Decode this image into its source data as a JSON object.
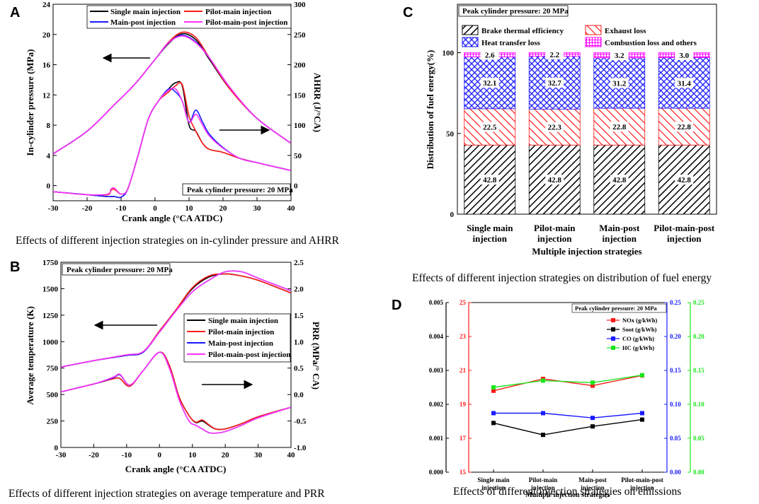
{
  "chart_data": [
    {
      "id": "A",
      "type": "line",
      "panel_label": "A",
      "caption": "Effects of different injection strategies on in-cylinder pressure and AHRR",
      "xlabel": "Crank angle (°CA ATDC)",
      "ylabel_left": "In-cylinder pressure (MPa)",
      "ylabel_right": "AHRR (J/°CA)",
      "xlim": [
        -30,
        40
      ],
      "xticks": [
        -30,
        -20,
        -10,
        0,
        10,
        20,
        30,
        40
      ],
      "ylim_left": [
        -2,
        24
      ],
      "yticks_left": [
        0,
        4,
        8,
        12,
        16,
        20,
        24
      ],
      "ylim_right": [
        -25,
        300
      ],
      "yticks_right": [
        0,
        50,
        100,
        150,
        200,
        250,
        300
      ],
      "annotation": "Peak cylinder pressure: 20 MPa",
      "legend": [
        "Single main injection",
        "Pilot-main injection",
        "Main-post injection",
        "Pilot-main-post injection"
      ],
      "colors": [
        "#000000",
        "#ff1a1a",
        "#1a1aff",
        "#ff33ff"
      ],
      "pressure_x": [
        -30,
        -20,
        -12,
        -6,
        0,
        4,
        8,
        12,
        16,
        22,
        30,
        40
      ],
      "pressure": [
        {
          "name": "Single main injection",
          "values": [
            4.2,
            7.2,
            10.7,
            13.4,
            16.7,
            18.8,
            20.1,
            19.3,
            16.7,
            12.8,
            8.9,
            5.6
          ]
        },
        {
          "name": "Pilot-main injection",
          "values": [
            4.2,
            7.2,
            10.7,
            13.4,
            16.7,
            19.0,
            20.3,
            19.6,
            16.9,
            12.8,
            8.9,
            5.6
          ]
        },
        {
          "name": "Main-post injection",
          "values": [
            4.2,
            7.2,
            10.7,
            13.4,
            16.7,
            18.9,
            19.9,
            19.0,
            16.9,
            13.0,
            8.9,
            5.6
          ]
        },
        {
          "name": "Pilot-main-post injection",
          "values": [
            4.2,
            7.2,
            10.7,
            13.4,
            16.7,
            18.9,
            19.8,
            18.9,
            16.9,
            13.0,
            8.9,
            5.6
          ]
        }
      ],
      "ahrr_x": [
        -30,
        -20,
        -14,
        -13,
        -12,
        -10,
        -8,
        -5,
        -2,
        1,
        4,
        6,
        8,
        10,
        12,
        14,
        16,
        20,
        25,
        30,
        40
      ],
      "ahrr": [
        {
          "name": "Single main injection",
          "values": [
            -10,
            -15,
            -18,
            -18,
            -18,
            -19,
            -5,
            50,
            110,
            140,
            160,
            170,
            165,
            100,
            90,
            70,
            60,
            55,
            45,
            38,
            25
          ]
        },
        {
          "name": "Pilot-main injection",
          "values": [
            -10,
            -15,
            -15,
            -8,
            -6,
            -14,
            -5,
            50,
            110,
            140,
            155,
            165,
            167,
            115,
            90,
            70,
            60,
            55,
            45,
            38,
            25
          ]
        },
        {
          "name": "Main-post injection",
          "values": [
            -10,
            -15,
            -18,
            -18,
            -18,
            -19,
            -5,
            50,
            110,
            140,
            160,
            155,
            140,
            105,
            125,
            105,
            85,
            63,
            45,
            38,
            25
          ]
        },
        {
          "name": "Pilot-main-post injection",
          "values": [
            -10,
            -15,
            -14,
            -6,
            -4,
            -14,
            -5,
            50,
            110,
            140,
            158,
            160,
            140,
            105,
            118,
            100,
            82,
            62,
            45,
            38,
            25
          ]
        }
      ]
    },
    {
      "id": "B",
      "type": "line",
      "panel_label": "B",
      "caption": "Effects of different injection strategies on average temperature and PRR",
      "xlabel": "Crank angle (°CA ATDC)",
      "ylabel_left": "Average temperature (K)",
      "ylabel_right": "PRR (MPa/° CA)",
      "xlim": [
        -30,
        40
      ],
      "xticks": [
        -30,
        -20,
        -10,
        0,
        10,
        20,
        30,
        40
      ],
      "ylim_left": [
        0,
        1750
      ],
      "yticks_left": [
        0,
        250,
        500,
        750,
        1000,
        1250,
        1500,
        1750
      ],
      "ylim_right": [
        -1.0,
        2.5
      ],
      "yticks_right": [
        -1.0,
        -0.5,
        0.0,
        0.5,
        1.0,
        1.5,
        2.0,
        2.5
      ],
      "annotation": "Peak cylinder pressure: 20 MPa",
      "legend": [
        "Single main injection",
        "Pilot-main injection",
        "Main-post injection",
        "Pilot-main-post injection"
      ],
      "colors": [
        "#000000",
        "#ff1a1a",
        "#1a1aff",
        "#ff33ff"
      ],
      "temp_x": [
        -30,
        -20,
        -10,
        -5,
        0,
        5,
        10,
        15,
        20,
        25,
        30,
        40
      ],
      "temperature": [
        {
          "name": "Single main injection",
          "values": [
            760,
            820,
            870,
            900,
            1100,
            1300,
            1500,
            1610,
            1640,
            1620,
            1580,
            1460
          ]
        },
        {
          "name": "Pilot-main injection",
          "values": [
            760,
            820,
            875,
            905,
            1100,
            1300,
            1510,
            1620,
            1640,
            1620,
            1580,
            1460
          ]
        },
        {
          "name": "Main-post injection",
          "values": [
            760,
            820,
            870,
            900,
            1090,
            1290,
            1470,
            1580,
            1660,
            1660,
            1600,
            1480
          ]
        },
        {
          "name": "Pilot-main-post injection",
          "values": [
            760,
            820,
            875,
            905,
            1090,
            1290,
            1470,
            1580,
            1660,
            1660,
            1600,
            1480
          ]
        }
      ],
      "prr_x": [
        -30,
        -20,
        -14,
        -12,
        -9,
        -5,
        0,
        3,
        6,
        9,
        11,
        13,
        15,
        17,
        20,
        25,
        30,
        40
      ],
      "prr": [
        {
          "name": "Single main injection",
          "values": [
            0.05,
            0.2,
            0.3,
            0.3,
            0.16,
            0.45,
            0.8,
            0.55,
            -0.05,
            -0.4,
            -0.53,
            -0.5,
            -0.58,
            -0.65,
            -0.65,
            -0.55,
            -0.42,
            -0.24
          ]
        },
        {
          "name": "Pilot-main injection",
          "values": [
            0.05,
            0.2,
            0.3,
            0.3,
            0.16,
            0.45,
            0.8,
            0.55,
            -0.05,
            -0.4,
            -0.52,
            -0.48,
            -0.57,
            -0.65,
            -0.65,
            -0.55,
            -0.42,
            -0.24
          ]
        },
        {
          "name": "Main-post injection",
          "values": [
            0.05,
            0.2,
            0.32,
            0.37,
            0.18,
            0.45,
            0.8,
            0.5,
            -0.1,
            -0.5,
            -0.58,
            -0.65,
            -0.72,
            -0.73,
            -0.7,
            -0.58,
            -0.44,
            -0.24
          ]
        },
        {
          "name": "Pilot-main-post injection",
          "values": [
            0.05,
            0.2,
            0.33,
            0.38,
            0.18,
            0.45,
            0.8,
            0.5,
            -0.1,
            -0.5,
            -0.58,
            -0.65,
            -0.72,
            -0.73,
            -0.7,
            -0.58,
            -0.44,
            -0.24
          ]
        }
      ]
    },
    {
      "id": "C",
      "type": "bar",
      "stacked": true,
      "panel_label": "C",
      "caption": "Effects of different injection strategies on distribution of fuel energy",
      "xlabel": "Multiple injection strategies",
      "ylabel": "Distribution of  fuel energy(%)",
      "ylim": [
        0,
        130
      ],
      "yticks": [
        0,
        50,
        100
      ],
      "annotation": "Peak cylinder pressure: 20 MPa",
      "categories": [
        [
          "Single main",
          "injection"
        ],
        [
          "Pilot-main",
          "injection"
        ],
        [
          "Main-post",
          "injection"
        ],
        [
          "Pilot-main-post",
          "injection"
        ]
      ],
      "series": [
        {
          "name": "Brake thermal efficiency",
          "color": "#000000",
          "values": [
            42.8,
            42.8,
            42.8,
            42.8
          ],
          "labels": [
            "42.8",
            "42.8",
            "42.8",
            "42.8"
          ]
        },
        {
          "name": "Exhaust loss",
          "color": "#ff1a1a",
          "values": [
            22.5,
            22.3,
            22.8,
            22.8
          ],
          "labels": [
            "22.5",
            "22.3",
            "22.8",
            "22.8"
          ]
        },
        {
          "name": "Heat transfer loss",
          "color": "#1a1aff",
          "values": [
            32.1,
            32.7,
            31.2,
            31.4
          ],
          "labels": [
            "32.1",
            "32.7",
            "31.2",
            "31.4"
          ]
        },
        {
          "name": "Combustion loss and others",
          "color": "#ff00ff",
          "values": [
            2.6,
            2.2,
            3.2,
            3.0
          ],
          "labels": [
            "2.6",
            "2.2",
            "3.2",
            "3.0"
          ]
        }
      ]
    },
    {
      "id": "D",
      "type": "line",
      "panel_label": "D",
      "caption": "Effects of different injection strategies on emissions",
      "xlabel": "Multiple injection strategies",
      "annotation": "Peak cylinder pressure: 20 MPa",
      "categories": [
        [
          "Single main",
          "injection"
        ],
        [
          "Pilot-main",
          "injection"
        ],
        [
          "Main-post",
          "injection"
        ],
        [
          "Pilot-main-post",
          "injection"
        ]
      ],
      "axes": {
        "left1": {
          "color": "#000000",
          "ylim": [
            0,
            0.005
          ],
          "ticks": [
            "0.000",
            "0.001",
            "0.002",
            "0.003",
            "0.004",
            "0.005"
          ]
        },
        "left2": {
          "color": "#ff1a1a",
          "ylim": [
            15,
            25
          ],
          "ticks": [
            "15",
            "17",
            "19",
            "21",
            "23",
            "25"
          ]
        },
        "right1": {
          "color": "#1a1aff",
          "ylim": [
            0,
            0.25
          ],
          "ticks": [
            "0.00",
            "0.05",
            "0.10",
            "0.15",
            "0.20",
            "0.25"
          ]
        },
        "right2": {
          "color": "#1ae61a",
          "ylim": [
            0,
            0.25
          ],
          "ticks": [
            "0.00",
            "0.05",
            "0.10",
            "0.15",
            "0.20",
            "0.25"
          ]
        }
      },
      "series": [
        {
          "name": "NOx (g/kWh)",
          "color": "#ff1a1a",
          "axis": "left2",
          "values": [
            19.8,
            20.5,
            20.1,
            20.7
          ]
        },
        {
          "name": "Soot (g/kWh)",
          "color": "#000000",
          "axis": "left1",
          "values": [
            0.00145,
            0.0011,
            0.00135,
            0.00155
          ]
        },
        {
          "name": "CO (g/kWh)",
          "color": "#1a1aff",
          "axis": "right1",
          "values": [
            0.087,
            0.087,
            0.08,
            0.087
          ]
        },
        {
          "name": "HC (g/kWh)",
          "color": "#1ae61a",
          "axis": "right2",
          "values": [
            0.125,
            0.135,
            0.132,
            0.143
          ]
        }
      ]
    }
  ]
}
